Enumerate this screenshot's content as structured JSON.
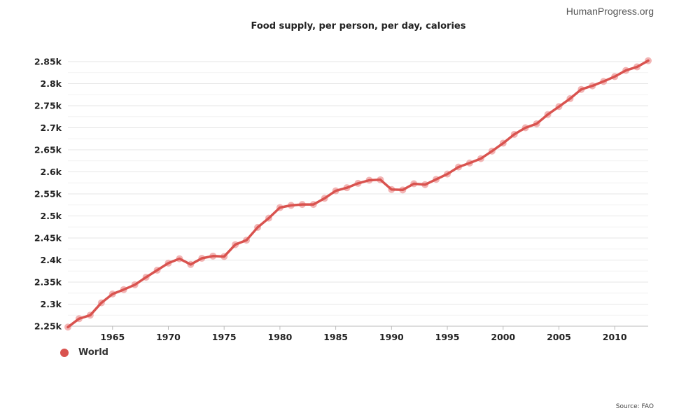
{
  "brand": "HumanProgress.org",
  "source": "Source: FAO",
  "chart_data": {
    "type": "line",
    "title": "Food supply, per person, per day, calories",
    "xlabel": "",
    "ylabel": "",
    "xlim": [
      1961,
      2013
    ],
    "ylim": [
      2250,
      2850
    ],
    "x_ticks": [
      1965,
      1970,
      1975,
      1980,
      1985,
      1990,
      1995,
      2000,
      2005,
      2010
    ],
    "y_ticks": [
      {
        "value": 2250,
        "label": "2.25k"
      },
      {
        "value": 2300,
        "label": "2.3k"
      },
      {
        "value": 2350,
        "label": "2.35k"
      },
      {
        "value": 2400,
        "label": "2.4k"
      },
      {
        "value": 2450,
        "label": "2.45k"
      },
      {
        "value": 2500,
        "label": "2.5k"
      },
      {
        "value": 2550,
        "label": "2.55k"
      },
      {
        "value": 2600,
        "label": "2.6k"
      },
      {
        "value": 2650,
        "label": "2.65k"
      },
      {
        "value": 2700,
        "label": "2.7k"
      },
      {
        "value": 2750,
        "label": "2.75k"
      },
      {
        "value": 2800,
        "label": "2.8k"
      },
      {
        "value": 2850,
        "label": "2.85k"
      }
    ],
    "grid": true,
    "legend_position": "bottom-left",
    "series": [
      {
        "name": "World",
        "color": "#d9534f",
        "marker_color": "#f0a8a8",
        "x": [
          1961,
          1962,
          1963,
          1964,
          1965,
          1966,
          1967,
          1968,
          1969,
          1970,
          1971,
          1972,
          1973,
          1974,
          1975,
          1976,
          1977,
          1978,
          1979,
          1980,
          1981,
          1982,
          1983,
          1984,
          1985,
          1986,
          1987,
          1988,
          1989,
          1990,
          1991,
          1992,
          1993,
          1994,
          1995,
          1996,
          1997,
          1998,
          1999,
          2000,
          2001,
          2002,
          2003,
          2004,
          2005,
          2006,
          2007,
          2008,
          2009,
          2010,
          2011,
          2012,
          2013
        ],
        "values": [
          2248,
          2267,
          2275,
          2303,
          2323,
          2333,
          2344,
          2361,
          2377,
          2393,
          2403,
          2390,
          2404,
          2409,
          2408,
          2435,
          2445,
          2474,
          2495,
          2519,
          2524,
          2526,
          2526,
          2540,
          2557,
          2564,
          2574,
          2581,
          2582,
          2560,
          2559,
          2573,
          2571,
          2583,
          2595,
          2611,
          2620,
          2630,
          2647,
          2665,
          2685,
          2700,
          2709,
          2730,
          2748,
          2766,
          2787,
          2795,
          2805,
          2816,
          2830,
          2838,
          2852
        ]
      }
    ]
  }
}
